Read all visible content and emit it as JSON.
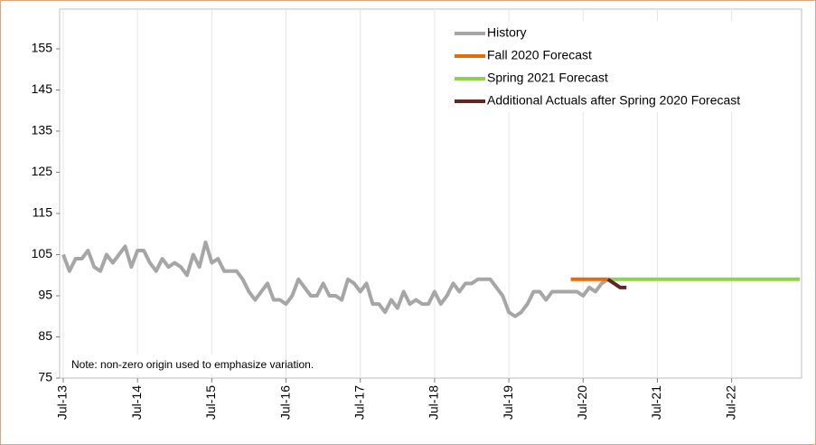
{
  "chart_data": {
    "type": "line",
    "annotation": "Note: non-zero origin used to emphasize variation.",
    "xlim": [
      "2013-07",
      "2023-06"
    ],
    "xticks": [
      {
        "value": "2013-07",
        "label": "Jul-13"
      },
      {
        "value": "2014-07",
        "label": "Jul-14"
      },
      {
        "value": "2015-07",
        "label": "Jul-15"
      },
      {
        "value": "2016-07",
        "label": "Jul-16"
      },
      {
        "value": "2017-07",
        "label": "Jul-17"
      },
      {
        "value": "2018-07",
        "label": "Jul-18"
      },
      {
        "value": "2019-07",
        "label": "Jul-19"
      },
      {
        "value": "2020-07",
        "label": "Jul-20"
      },
      {
        "value": "2021-07",
        "label": "Jul-21"
      },
      {
        "value": "2022-07",
        "label": "Jul-22"
      }
    ],
    "ylim": [
      75,
      155
    ],
    "yticks": [
      75,
      85,
      95,
      105,
      115,
      125,
      135,
      145,
      155
    ],
    "grid": true,
    "legend": "upper right",
    "series": [
      {
        "name": "History",
        "color": "#a6a6a6",
        "x": [
          "2013-07",
          "2013-08",
          "2013-09",
          "2013-10",
          "2013-11",
          "2013-12",
          "2014-01",
          "2014-02",
          "2014-03",
          "2014-04",
          "2014-05",
          "2014-06",
          "2014-07",
          "2014-08",
          "2014-09",
          "2014-10",
          "2014-11",
          "2014-12",
          "2015-01",
          "2015-02",
          "2015-03",
          "2015-04",
          "2015-05",
          "2015-06",
          "2015-07",
          "2015-08",
          "2015-09",
          "2015-10",
          "2015-11",
          "2015-12",
          "2016-01",
          "2016-02",
          "2016-03",
          "2016-04",
          "2016-05",
          "2016-06",
          "2016-07",
          "2016-08",
          "2016-09",
          "2016-10",
          "2016-11",
          "2016-12",
          "2017-01",
          "2017-02",
          "2017-03",
          "2017-04",
          "2017-05",
          "2017-06",
          "2017-07",
          "2017-08",
          "2017-09",
          "2017-10",
          "2017-11",
          "2017-12",
          "2018-01",
          "2018-02",
          "2018-03",
          "2018-04",
          "2018-05",
          "2018-06",
          "2018-07",
          "2018-08",
          "2018-09",
          "2018-10",
          "2018-11",
          "2018-12",
          "2019-01",
          "2019-02",
          "2019-03",
          "2019-04",
          "2019-05",
          "2019-06",
          "2019-07",
          "2019-08",
          "2019-09",
          "2019-10",
          "2019-11",
          "2019-12",
          "2020-01",
          "2020-02",
          "2020-03",
          "2020-04",
          "2020-05",
          "2020-06",
          "2020-07",
          "2020-08",
          "2020-09",
          "2020-10",
          "2020-11"
        ],
        "values": [
          105,
          101,
          104,
          104,
          106,
          102,
          101,
          105,
          103,
          105,
          107,
          102,
          106,
          106,
          103,
          101,
          104,
          102,
          103,
          102,
          100,
          105,
          102,
          108,
          103,
          104,
          101,
          101,
          101,
          99,
          96,
          94,
          96,
          98,
          94,
          94,
          93,
          95,
          99,
          97,
          95,
          95,
          98,
          95,
          95,
          94,
          99,
          98,
          96,
          98,
          93,
          93,
          91,
          94,
          92,
          96,
          93,
          94,
          93,
          93,
          96,
          93,
          95,
          98,
          96,
          98,
          98,
          99,
          99,
          99,
          97,
          95,
          91,
          90,
          91,
          93,
          96,
          96,
          94,
          96,
          96,
          96,
          96,
          96,
          95,
          97,
          96,
          98,
          99
        ]
      },
      {
        "name": "Fall 2020 Forecast",
        "color": "#e46c0a",
        "x": [
          "2020-05",
          "2020-11"
        ],
        "values": [
          99,
          99
        ]
      },
      {
        "name": "Spring 2021 Forecast",
        "color": "#92d050",
        "x": [
          "2020-11",
          "2023-06"
        ],
        "values": [
          99,
          99
        ]
      },
      {
        "name": "Additional Actuals after Spring 2020 Forecast",
        "color": "#632523",
        "x": [
          "2020-11",
          "2020-12",
          "2021-01",
          "2021-02"
        ],
        "values": [
          99,
          98,
          97,
          97
        ]
      }
    ]
  }
}
